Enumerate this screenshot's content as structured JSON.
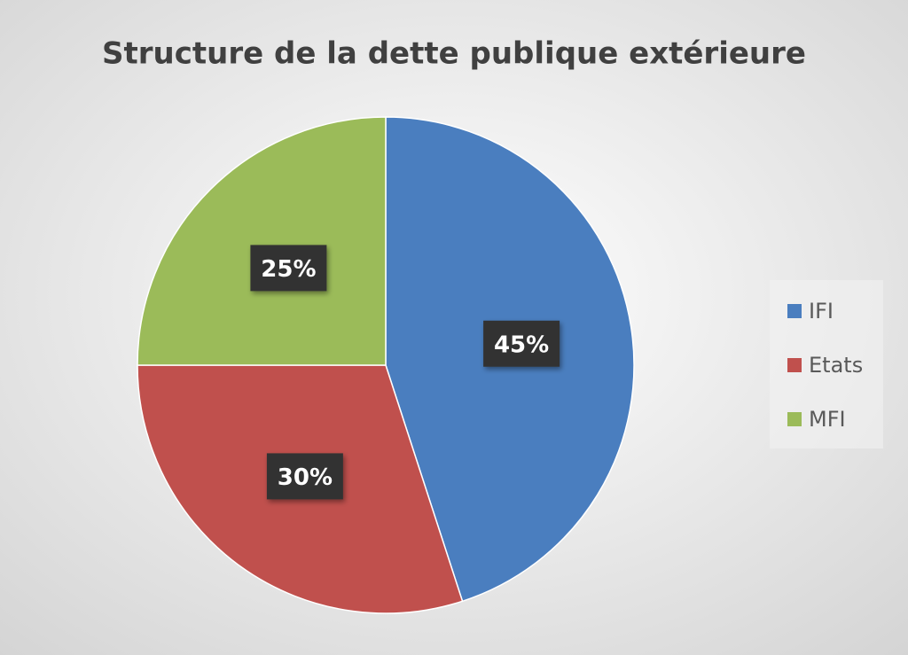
{
  "chart_data": {
    "type": "pie",
    "title": "Structure de la dette publique extérieure",
    "categories": [
      "IFI",
      "Etats",
      "MFI"
    ],
    "values": [
      45,
      30,
      25
    ],
    "value_labels": [
      "45%",
      "30%",
      "25%"
    ],
    "colors": [
      "#4a7ebf",
      "#c0504d",
      "#9bbb59"
    ],
    "legend": "right"
  }
}
